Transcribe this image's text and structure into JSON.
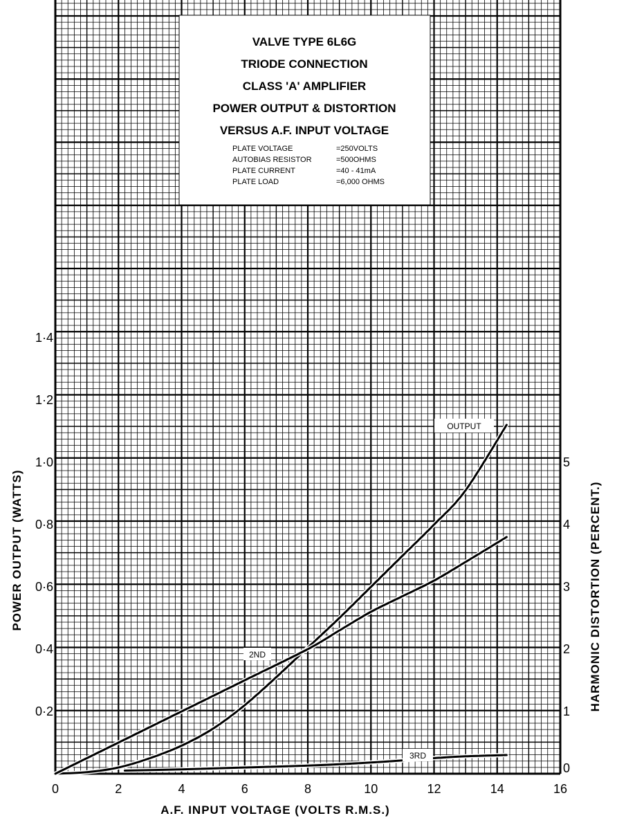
{
  "chart_data": {
    "type": "line",
    "title_lines": [
      "VALVE TYPE 6L6G",
      "TRIODE CONNECTION",
      "CLASS 'A' AMPLIFIER",
      "POWER OUTPUT & DISTORTION",
      "VERSUS A.F. INPUT VOLTAGE"
    ],
    "conditions": [
      {
        "label": "PLATE VOLTAGE",
        "value": "=250VOLTS"
      },
      {
        "label": "AUTOBIAS RESISTOR",
        "value": "=500OHMS"
      },
      {
        "label": "PLATE CURRENT",
        "value": "=40 - 41mA"
      },
      {
        "label": "PLATE LOAD",
        "value": "=6,000 OHMS"
      }
    ],
    "xlabel": "A.F.  INPUT  VOLTAGE     (VOLTS R.M.S.)",
    "ylabel": "POWER  OUTPUT  (WATTS)",
    "y2label": "HARMONIC  DISTORTION  (PERCENT.)",
    "xlim": [
      0,
      16
    ],
    "ylim": [
      0,
      1.4
    ],
    "y2lim": [
      0,
      7
    ],
    "grid": true,
    "x_ticks": [
      {
        "v": 0,
        "label": "0"
      },
      {
        "v": 2,
        "label": "2"
      },
      {
        "v": 4,
        "label": "4"
      },
      {
        "v": 6,
        "label": "6"
      },
      {
        "v": 8,
        "label": "8"
      },
      {
        "v": 10,
        "label": "10"
      },
      {
        "v": 12,
        "label": "12"
      },
      {
        "v": 14,
        "label": "14"
      },
      {
        "v": 16,
        "label": "16"
      }
    ],
    "y_ticks": [
      {
        "v": 0.2,
        "label": "0·2"
      },
      {
        "v": 0.4,
        "label": "0·4"
      },
      {
        "v": 0.6,
        "label": "0·6"
      },
      {
        "v": 0.8,
        "label": "0·8"
      },
      {
        "v": 1.0,
        "label": "1·0"
      },
      {
        "v": 1.2,
        "label": "1·2"
      },
      {
        "v": 1.4,
        "label": "1·4"
      }
    ],
    "y2_ticks": [
      {
        "v": 0,
        "label": "0"
      },
      {
        "v": 1,
        "label": "1"
      },
      {
        "v": 2,
        "label": "2"
      },
      {
        "v": 3,
        "label": "3"
      },
      {
        "v": 4,
        "label": "4"
      },
      {
        "v": 5,
        "label": "5"
      }
    ],
    "series": [
      {
        "name": "OUTPUT",
        "axis": "left",
        "points": [
          [
            0,
            0
          ],
          [
            1,
            0.005
          ],
          [
            2,
            0.02
          ],
          [
            3,
            0.05
          ],
          [
            4,
            0.09
          ],
          [
            5,
            0.145
          ],
          [
            6,
            0.22
          ],
          [
            7,
            0.31
          ],
          [
            8,
            0.405
          ],
          [
            9,
            0.5
          ],
          [
            10,
            0.6
          ],
          [
            11,
            0.7
          ],
          [
            12,
            0.8
          ],
          [
            13,
            0.91
          ],
          [
            14.3,
            1.12
          ]
        ]
      },
      {
        "name": "2ND",
        "axis": "right",
        "points": [
          [
            0,
            0
          ],
          [
            2,
            0.5
          ],
          [
            4,
            1.0
          ],
          [
            6,
            1.5
          ],
          [
            8,
            2.0
          ],
          [
            9,
            2.3
          ],
          [
            10,
            2.6
          ],
          [
            11,
            2.85
          ],
          [
            12,
            3.1
          ],
          [
            13,
            3.4
          ],
          [
            14.3,
            3.8
          ]
        ]
      },
      {
        "name": "3RD",
        "axis": "right",
        "points": [
          [
            2.2,
            0.05
          ],
          [
            4,
            0.07
          ],
          [
            6,
            0.1
          ],
          [
            8,
            0.13
          ],
          [
            10,
            0.18
          ],
          [
            12,
            0.25
          ],
          [
            13,
            0.28
          ],
          [
            14.3,
            0.3
          ]
        ]
      }
    ]
  }
}
